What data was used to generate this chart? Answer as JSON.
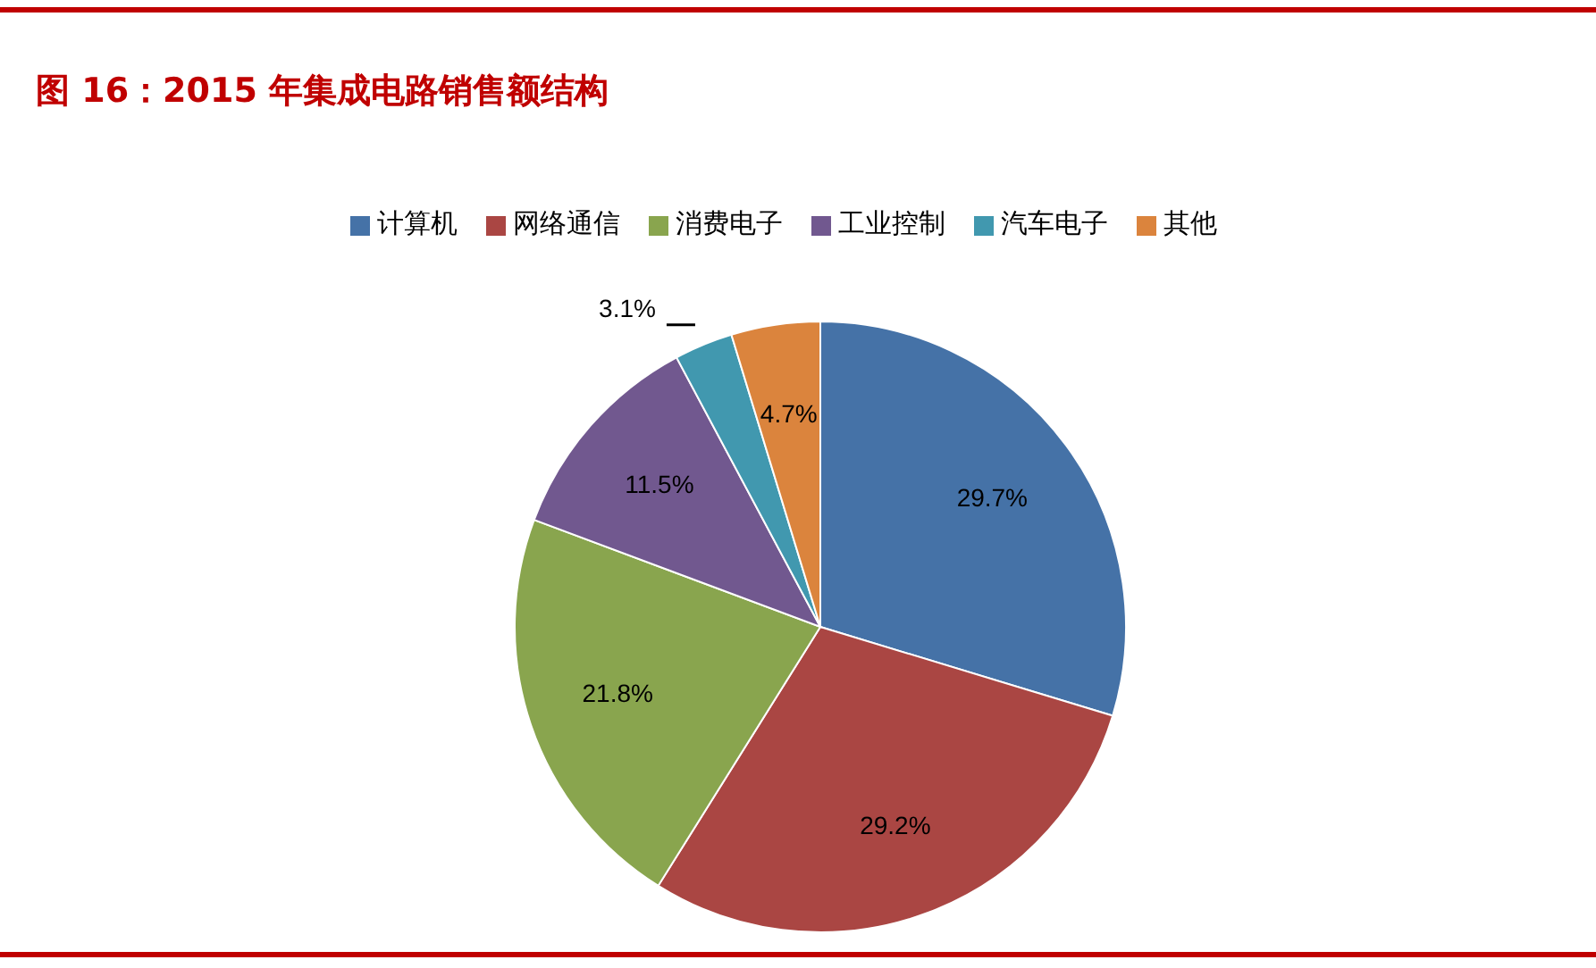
{
  "chart_data": {
    "type": "pie",
    "title": "图 16：2015 年集成电路销售额结构",
    "categories": [
      "计算机",
      "网络通信",
      "消费电子",
      "工业控制",
      "汽车电子",
      "其他"
    ],
    "values": [
      29.7,
      29.2,
      21.8,
      11.5,
      3.1,
      4.7
    ],
    "value_labels": [
      "29.7%",
      "29.2%",
      "21.8%",
      "11.5%",
      "3.1%",
      "4.7%"
    ],
    "colors": [
      "#4572a7",
      "#aa4643",
      "#89a54e",
      "#71588f",
      "#4198af",
      "#db843d"
    ],
    "legend": "top"
  }
}
